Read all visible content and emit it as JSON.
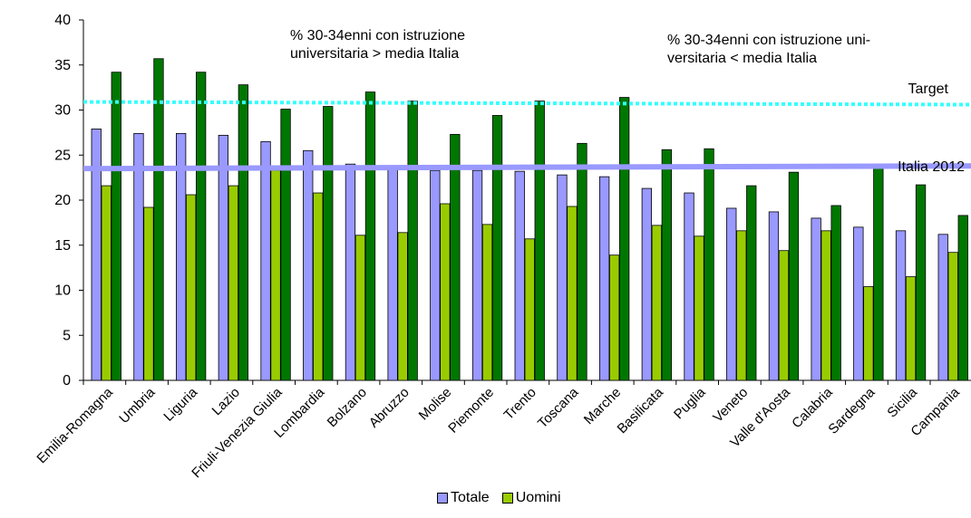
{
  "chart_data": {
    "type": "bar",
    "ylim": [
      0,
      40
    ],
    "yticks": [
      0,
      5,
      10,
      15,
      20,
      25,
      30,
      35,
      40
    ],
    "categories": [
      "Emilia-Romagna",
      "Umbria",
      "Liguria",
      "Lazio",
      "Friuli-Venezia Giulia",
      "Lombardia",
      "Bolzano",
      "Abruzzo",
      "Molise",
      "Piemonte",
      "Trento",
      "Toscana",
      "Marche",
      "Basilicata",
      "Puglia",
      "Veneto",
      "Valle d'Aosta",
      "Calabria",
      "Sardegna",
      "Sicilia",
      "Campania"
    ],
    "series": [
      {
        "name": "Totale",
        "color": "#9999ff",
        "values": [
          27.9,
          27.4,
          27.4,
          27.2,
          26.5,
          25.5,
          24.0,
          23.6,
          23.3,
          23.3,
          23.2,
          22.8,
          22.6,
          21.3,
          20.8,
          19.1,
          18.7,
          18.0,
          17.0,
          16.6,
          16.2
        ]
      },
      {
        "name": "Uomini",
        "color": "#99cc00",
        "values": [
          21.6,
          19.2,
          20.6,
          21.6,
          23.3,
          20.8,
          16.1,
          16.4,
          19.6,
          17.3,
          15.7,
          19.3,
          13.9,
          17.2,
          16.0,
          16.6,
          14.4,
          16.6,
          10.4,
          11.5,
          14.2
        ]
      },
      {
        "name": "",
        "color": "#007700",
        "values": [
          34.2,
          35.7,
          34.2,
          32.8,
          30.1,
          30.4,
          32.0,
          31.0,
          27.3,
          29.4,
          31.0,
          26.3,
          31.4,
          25.6,
          25.7,
          21.6,
          23.1,
          19.4,
          23.6,
          21.7,
          18.3
        ]
      }
    ],
    "reference_lines": [
      {
        "label": "Target",
        "value": 30.9,
        "end_value": 30.6,
        "color": "#33ffff",
        "style": "dotted"
      },
      {
        "label": "Italia 2012",
        "value": 23.5,
        "end_value": 23.8,
        "color": "#9999ff",
        "style": "solid"
      }
    ],
    "annotations": [
      {
        "text_lines": [
          "% 30-34enni con istruzione",
          "universitaria > media Italia"
        ]
      },
      {
        "text_lines": [
          "% 30-34enni con istruzione uni-",
          "versitaria < media Italia"
        ]
      }
    ]
  }
}
